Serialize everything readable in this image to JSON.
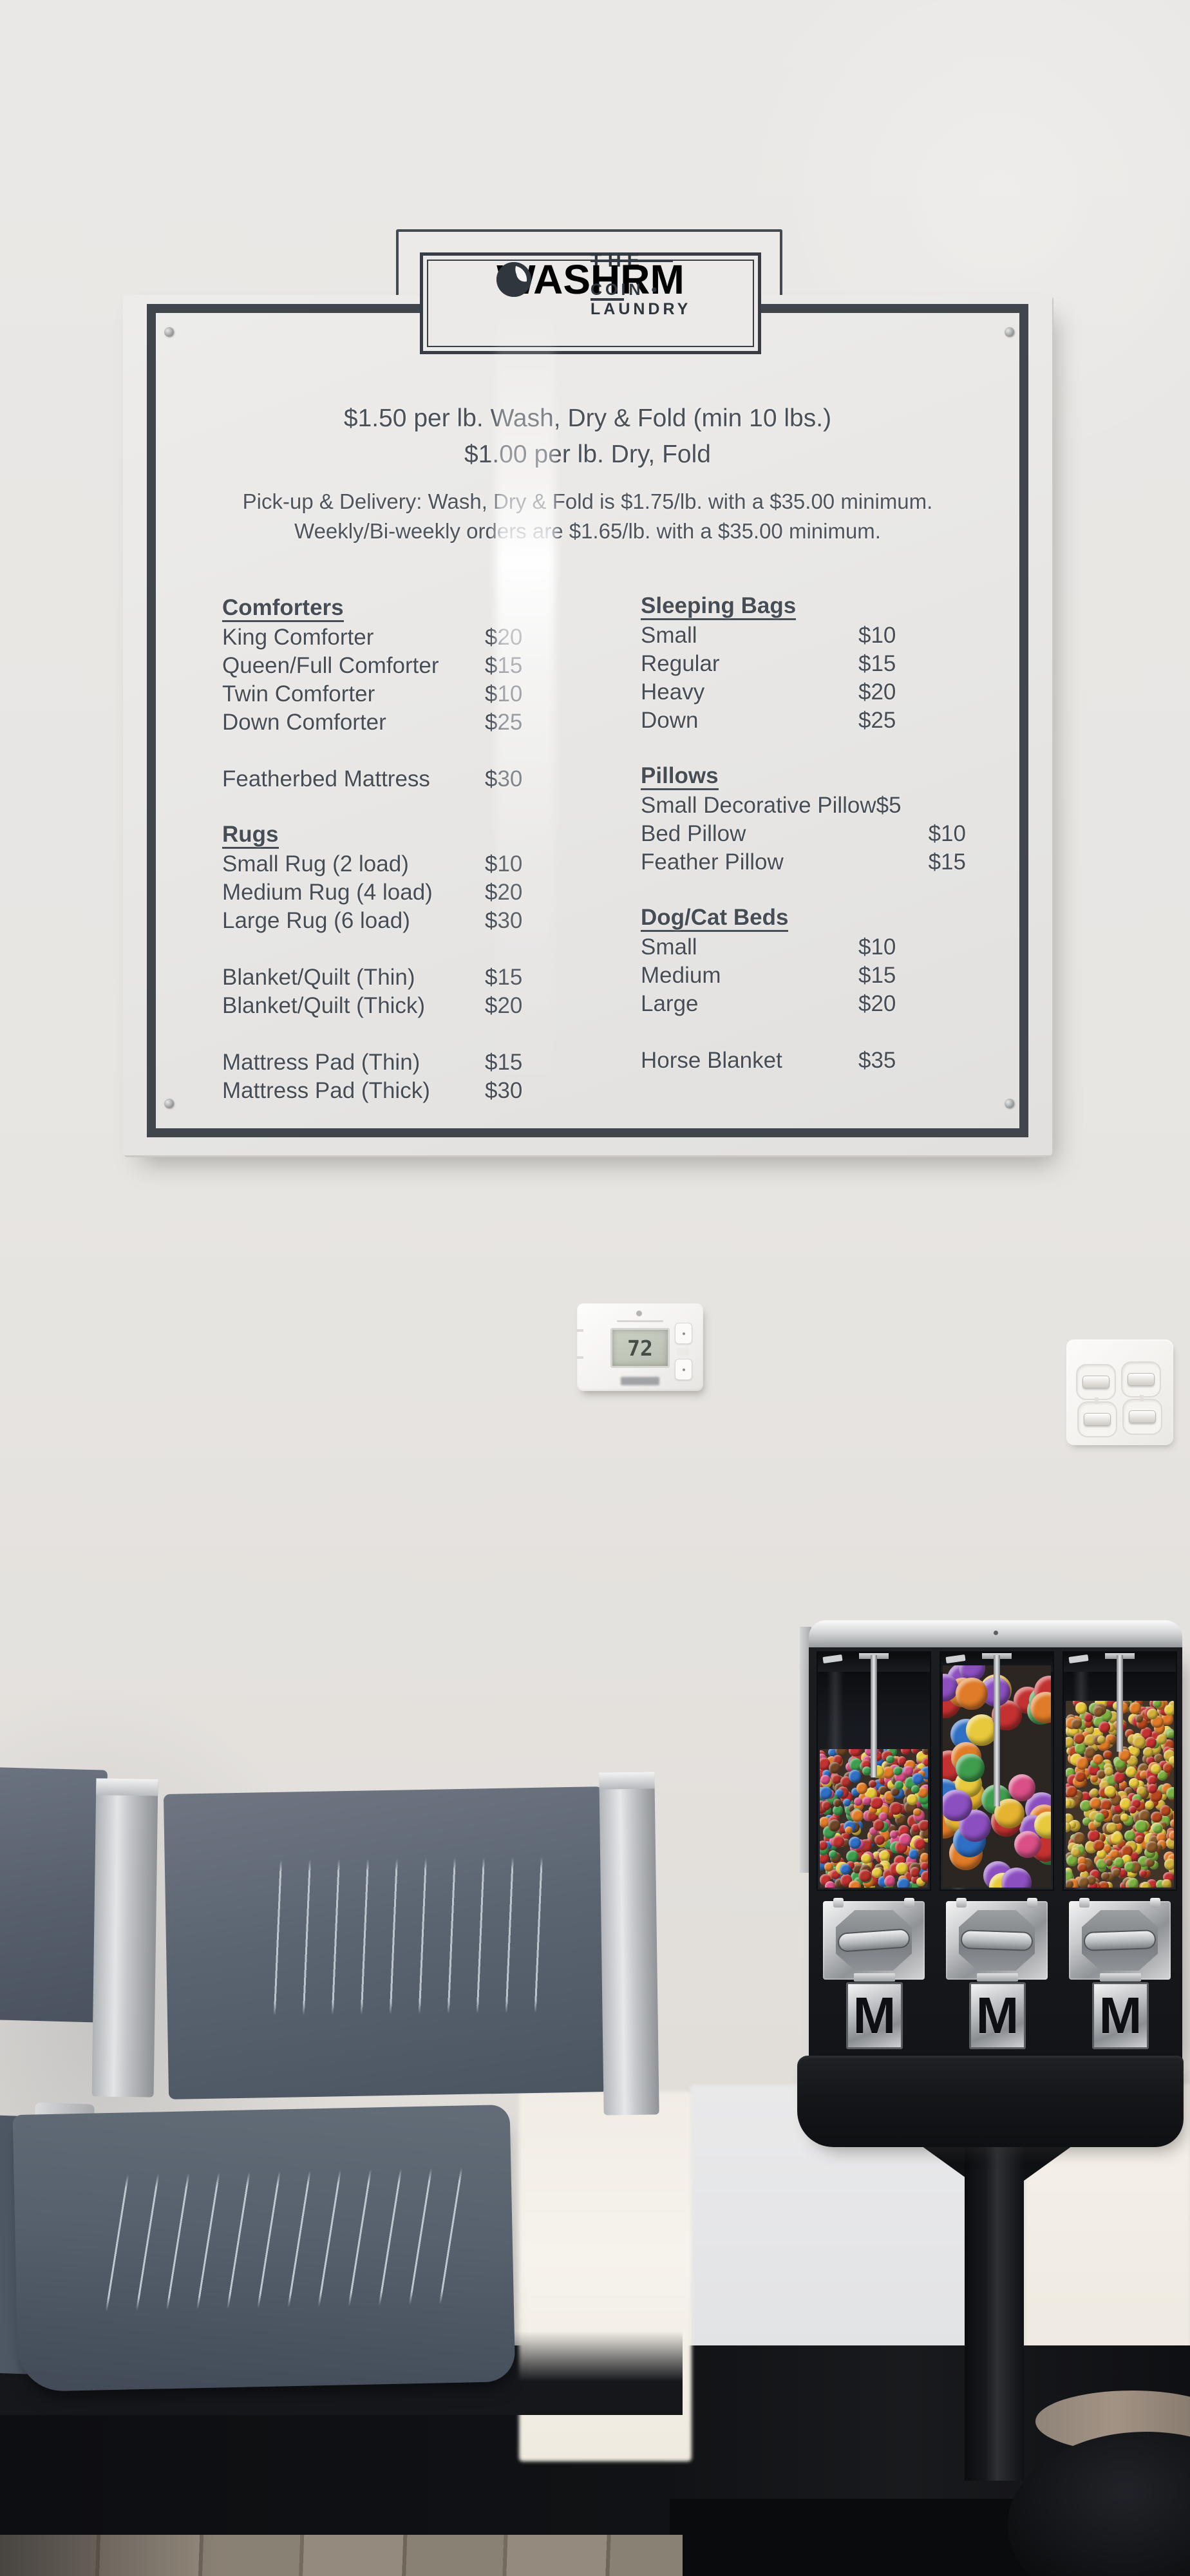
{
  "sign": {
    "logo": {
      "top_word": "THE",
      "brand_prefix": "WASHR",
      "brand_suffix": "M",
      "subtitle": "COIN • LAUNDRY"
    },
    "pricing_intro": [
      "$1.50 per lb. Wash, Dry & Fold (min 10 lbs.)",
      "$1.00 per lb. Dry, Fold"
    ],
    "delivery_info": [
      "Pick-up & Delivery: Wash, Dry & Fold is $1.75/lb. with a $35.00 minimum.",
      "Weekly/Bi-weekly orders are $1.65/lb. with a $35.00 minimum."
    ],
    "left_column": [
      {
        "type": "header",
        "label": "Comforters"
      },
      {
        "type": "item",
        "label": "King Comforter",
        "price": "$20"
      },
      {
        "type": "item",
        "label": "Queen/Full Comforter",
        "price": "$15"
      },
      {
        "type": "item",
        "label": "Twin Comforter",
        "price": "$10"
      },
      {
        "type": "item",
        "label": "Down Comforter",
        "price": "$25"
      },
      {
        "type": "spacer"
      },
      {
        "type": "item",
        "label": "Featherbed Mattress",
        "price": "$30"
      },
      {
        "type": "spacer"
      },
      {
        "type": "header",
        "label": "Rugs"
      },
      {
        "type": "item",
        "label": "Small Rug (2 load)",
        "price": "$10"
      },
      {
        "type": "item",
        "label": "Medium Rug (4 load)",
        "price": "$20"
      },
      {
        "type": "item",
        "label": "Large Rug (6 load)",
        "price": "$30"
      },
      {
        "type": "spacer"
      },
      {
        "type": "item",
        "label": "Blanket/Quilt (Thin)",
        "price": "$15"
      },
      {
        "type": "item",
        "label": "Blanket/Quilt (Thick)",
        "price": "$20"
      },
      {
        "type": "spacer"
      },
      {
        "type": "item",
        "label": "Mattress Pad (Thin)",
        "price": "$15"
      },
      {
        "type": "item",
        "label": "Mattress Pad (Thick)",
        "price": "$30"
      }
    ],
    "right_column": [
      {
        "type": "header",
        "label": "Sleeping Bags"
      },
      {
        "type": "item",
        "label": "Small",
        "price": "$10"
      },
      {
        "type": "item",
        "label": "Regular",
        "price": "$15"
      },
      {
        "type": "item",
        "label": "Heavy",
        "price": "$20"
      },
      {
        "type": "item",
        "label": "Down",
        "price": "$25"
      },
      {
        "type": "spacer"
      },
      {
        "type": "header",
        "label": "Pillows"
      },
      {
        "type": "item",
        "label": "Small Decorative Pillow",
        "price": "$5"
      },
      {
        "type": "item",
        "label": "Bed Pillow",
        "price": "$10",
        "align": "right"
      },
      {
        "type": "item",
        "label": "Feather Pillow",
        "price": "$15",
        "align": "right"
      },
      {
        "type": "spacer"
      },
      {
        "type": "header",
        "label": "Dog/Cat Beds"
      },
      {
        "type": "item",
        "label": "Small",
        "price": "$10"
      },
      {
        "type": "item",
        "label": "Medium",
        "price": "$15"
      },
      {
        "type": "item",
        "label": "Large",
        "price": "$20"
      },
      {
        "type": "spacer"
      },
      {
        "type": "item",
        "label": "Horse Blanket",
        "price": "$35"
      }
    ]
  },
  "thermostat": {
    "display_temp": "72"
  },
  "vending": {
    "dispenser_label": "M",
    "hoppers": [
      {
        "name": "chocolate-candies",
        "fill": "f1",
        "count": 380,
        "rmin": 6,
        "rmax": 10,
        "seed": 11,
        "palette": [
          "#c43131",
          "#e07b28",
          "#e8c93c",
          "#3f9d4e",
          "#2f6fc4",
          "#6e4526",
          "#d94f86",
          "#b5332c"
        ]
      },
      {
        "name": "gumballs",
        "fill": "f2",
        "count": 46,
        "rmin": 20,
        "rmax": 26,
        "seed": 23,
        "palette": [
          "#e8c93c",
          "#e07b28",
          "#d94f86",
          "#3f9d4e",
          "#2f6fc4",
          "#c43131",
          "#8c4fc0",
          "#e5b32f"
        ]
      },
      {
        "name": "fruit-candies",
        "fill": "f3",
        "count": 430,
        "rmin": 6,
        "rmax": 10,
        "seed": 37,
        "palette": [
          "#c43131",
          "#e07b28",
          "#e8c93c",
          "#7db13f",
          "#8a5a2b",
          "#d2b23c",
          "#b8471f"
        ]
      }
    ]
  },
  "colors": {
    "wall": "#e8e6e3",
    "sign_text": "#474d55",
    "sign_border": "#41464d",
    "chair": "#58626e",
    "machine_black": "#16181c",
    "lcd": "#c2c8ba"
  }
}
